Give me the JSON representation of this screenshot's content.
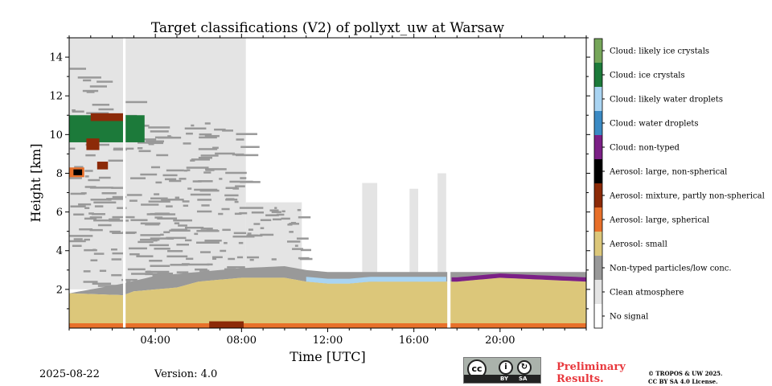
{
  "chart_data": {
    "type": "heatmap",
    "title": "Target classifications (V2) of pollyxt_uw at Warsaw",
    "xlabel": "Time [UTC]",
    "ylabel": "Height [km]",
    "xlim_hours": [
      0,
      24
    ],
    "ylim_km": [
      0,
      15
    ],
    "x_ticks": [
      {
        "hour": 4,
        "label": "04:00"
      },
      {
        "hour": 8,
        "label": "08:00"
      },
      {
        "hour": 12,
        "label": "12:00"
      },
      {
        "hour": 16,
        "label": "16:00"
      },
      {
        "hour": 20,
        "label": "20:00"
      }
    ],
    "y_ticks": [
      {
        "km": 2,
        "label": "2"
      },
      {
        "km": 4,
        "label": "4"
      },
      {
        "km": 6,
        "label": "6"
      },
      {
        "km": 8,
        "label": "8"
      },
      {
        "km": 10,
        "label": "10"
      },
      {
        "km": 12,
        "label": "12"
      },
      {
        "km": 14,
        "label": "14"
      }
    ],
    "colorbar": [
      {
        "label": "Cloud: likely ice crystals",
        "color": "#76a65a"
      },
      {
        "label": "Cloud: ice crystals",
        "color": "#1c7a3a"
      },
      {
        "label": "Cloud: likely water droplets",
        "color": "#a9d4f2"
      },
      {
        "label": "Cloud: water droplets",
        "color": "#3b8ac4"
      },
      {
        "label": "Cloud: non-typed",
        "color": "#7b1f86"
      },
      {
        "label": "Aerosol: large, non-spherical",
        "color": "#000000"
      },
      {
        "label": "Aerosol: mixture, partly non-spherical",
        "color": "#8c2a08"
      },
      {
        "label": "Aerosol: large, spherical",
        "color": "#e8702a"
      },
      {
        "label": "Aerosol: small",
        "color": "#dcc77a"
      },
      {
        "label": "Non-typed particles/low conc.",
        "color": "#999999"
      },
      {
        "label": "Clean atmosphere",
        "color": "#e4e4e4"
      },
      {
        "label": "No signal",
        "color": "#ffffff"
      }
    ],
    "layers": {
      "aerosol_small_top_km": [
        [
          0,
          1.8
        ],
        [
          2.5,
          1.7
        ],
        [
          3,
          1.9
        ],
        [
          4,
          2.0
        ],
        [
          5,
          2.1
        ],
        [
          6,
          2.4
        ],
        [
          7,
          2.5
        ],
        [
          8,
          2.6
        ],
        [
          10,
          2.6
        ],
        [
          11,
          2.4
        ],
        [
          12,
          2.3
        ],
        [
          13,
          2.3
        ],
        [
          14,
          2.4
        ],
        [
          15,
          2.4
        ],
        [
          16,
          2.4
        ],
        [
          17,
          2.4
        ],
        [
          18,
          2.4
        ],
        [
          19,
          2.5
        ],
        [
          20,
          2.6
        ],
        [
          22,
          2.5
        ],
        [
          24,
          2.4
        ]
      ],
      "non_typed_top_km": [
        [
          0,
          1.8
        ],
        [
          2.5,
          2.3
        ],
        [
          4,
          2.7
        ],
        [
          6,
          2.9
        ],
        [
          8,
          3.1
        ],
        [
          10,
          3.2
        ],
        [
          11,
          3.0
        ],
        [
          12,
          2.9
        ],
        [
          24,
          2.9
        ]
      ],
      "non_typed_low_conc_top_km": 12,
      "clean_atmosphere_top_km": 15,
      "cirrus_core_km": [
        9.6,
        11.0
      ],
      "no_signal_gaps_hours": [
        [
          2.5,
          2.62
        ],
        [
          17.55,
          17.7
        ]
      ]
    }
  },
  "footer": {
    "date": "2025-08-22",
    "version": "Version: 4.0",
    "cc_symbol": "cc",
    "cc_by": "BY",
    "cc_sa": "SA",
    "preliminary": "Preliminary Results.",
    "license_line1": "© TROPOS & UW 2025.",
    "license_line2": "CC BY SA 4.0 License."
  }
}
